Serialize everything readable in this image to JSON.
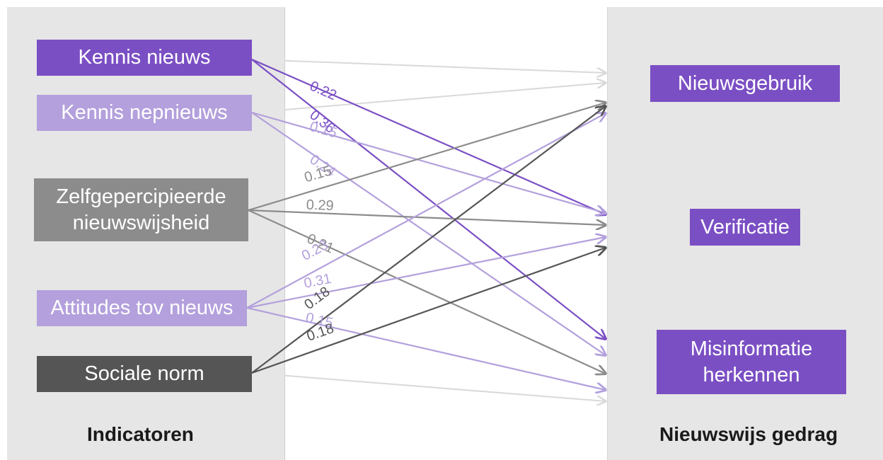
{
  "colors": {
    "purple": "#7b4fc4",
    "lavender": "#b3a0dc",
    "gray": "#8c8c8c",
    "dark_gray": "#555555",
    "faint": "#d9d9d9"
  },
  "indicators": {
    "title": "Indicatoren",
    "items": [
      {
        "id": "kennis-nieuws",
        "label": "Kennis nieuws"
      },
      {
        "id": "kennis-nepnieuws",
        "label": "Kennis nepnieuws"
      },
      {
        "id": "zelfgepercipieerde",
        "label": "Zelfgepercipieerde nieuwswijsheid"
      },
      {
        "id": "attitudes",
        "label": "Attitudes tov nieuws"
      },
      {
        "id": "sociale-norm",
        "label": "Sociale norm"
      }
    ]
  },
  "behavior": {
    "title": "Nieuwswijs gedrag",
    "items": [
      {
        "id": "nieuwsgebruik",
        "label": "Nieuwsgebruik"
      },
      {
        "id": "verificatie",
        "label": "Verificatie"
      },
      {
        "id": "misinformatie",
        "label": "Misinformatie herkennen"
      }
    ]
  },
  "paths": [
    {
      "from": "kennis-nieuws",
      "to": "verificatie",
      "coef": "0.22",
      "color": "purple"
    },
    {
      "from": "kennis-nieuws",
      "to": "misinformatie",
      "coef": "0.36",
      "color": "purple"
    },
    {
      "from": "kennis-nepnieuws",
      "to": "verificatie",
      "coef": "0.15",
      "color": "lavender"
    },
    {
      "from": "kennis-nepnieuws",
      "to": "misinformatie",
      "coef": "0.24",
      "color": "lavender"
    },
    {
      "from": "zelfgepercipieerde",
      "to": "nieuwsgebruik",
      "coef": "0.15",
      "color": "gray"
    },
    {
      "from": "zelfgepercipieerde",
      "to": "verificatie",
      "coef": "0.29",
      "color": "gray"
    },
    {
      "from": "zelfgepercipieerde",
      "to": "misinformatie",
      "coef": "0.21",
      "color": "gray"
    },
    {
      "from": "attitudes",
      "to": "nieuwsgebruik",
      "coef": "0.23",
      "color": "lavender"
    },
    {
      "from": "attitudes",
      "to": "verificatie",
      "coef": "0.31",
      "color": "lavender"
    },
    {
      "from": "attitudes",
      "to": "misinformatie",
      "coef": "0.15",
      "color": "lavender"
    },
    {
      "from": "sociale-norm",
      "to": "nieuwsgebruik",
      "coef": "0.18",
      "color": "dark_gray"
    },
    {
      "from": "sociale-norm",
      "to": "verificatie",
      "coef": "0.18",
      "color": "dark_gray"
    }
  ],
  "non_significant_paths": [
    {
      "from": "kennis-nieuws",
      "to": "nieuwsgebruik"
    },
    {
      "from": "kennis-nepnieuws",
      "to": "nieuwsgebruik"
    },
    {
      "from": "sociale-norm",
      "to": "misinformatie"
    }
  ]
}
